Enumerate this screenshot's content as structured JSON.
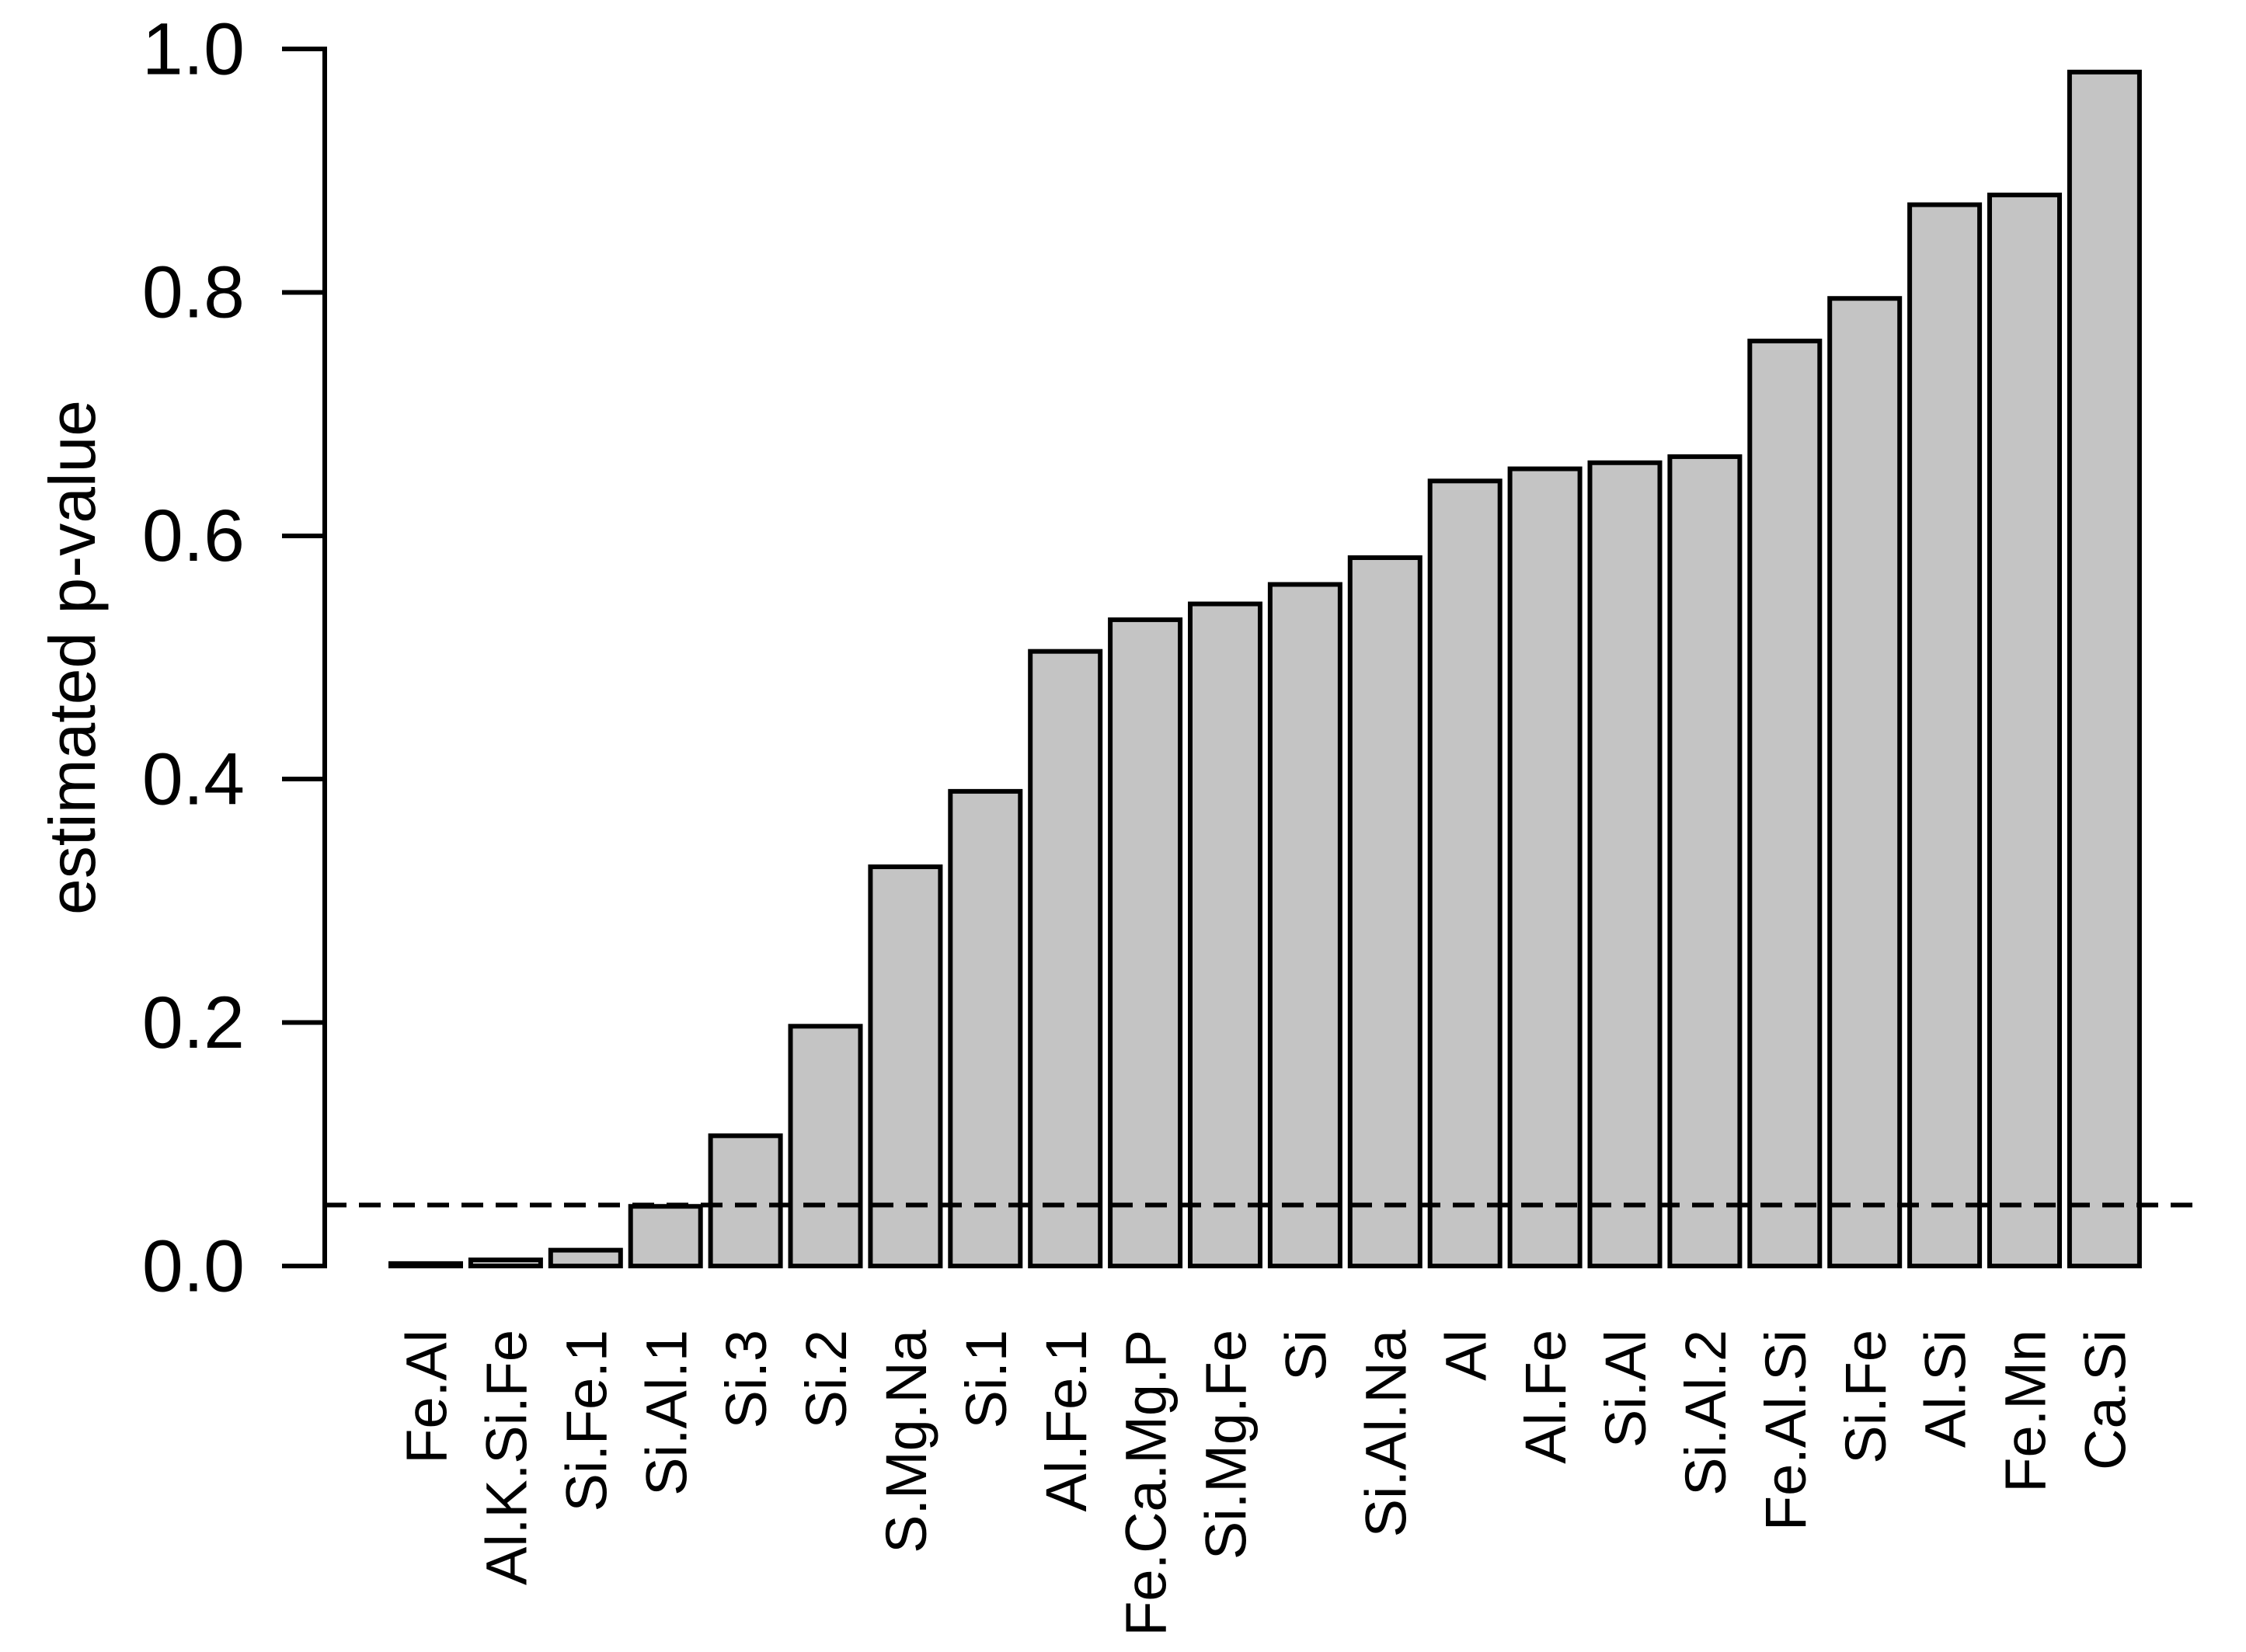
{
  "figure": {
    "background": "#ffffff",
    "text_color": "#000000"
  },
  "chart_data": {
    "type": "bar",
    "title": "",
    "xlabel": "",
    "ylabel": "estimated p-value",
    "categories": [
      "Fe.Al",
      "Al.K.Si.Fe",
      "Si.Fe.1",
      "Si.Al.1",
      "Si.3",
      "Si.2",
      "S.Mg.Na",
      "Si.1",
      "Al.Fe.1",
      "Fe.Ca.Mg.P",
      "Si.Mg.Fe",
      "Si",
      "Si.Al.Na",
      "Al",
      "Al.Fe",
      "Si.Al",
      "Si.Al.2",
      "Fe.Al.Si",
      "Si.Fe",
      "Al.Si",
      "Fe.Mn",
      "Ca.Si"
    ],
    "values": [
      0.002,
      0.005,
      0.013,
      0.049,
      0.107,
      0.197,
      0.328,
      0.39,
      0.505,
      0.531,
      0.544,
      0.56,
      0.582,
      0.645,
      0.655,
      0.66,
      0.665,
      0.76,
      0.795,
      0.872,
      0.88,
      0.981
    ],
    "ylim": [
      0,
      1
    ],
    "yticks": [
      0.0,
      0.2,
      0.4,
      0.6,
      0.8,
      1.0
    ],
    "ytick_labels": [
      "0.0",
      "0.2",
      "0.4",
      "0.6",
      "0.8",
      "1.0"
    ],
    "threshold_line": {
      "value": 0.05,
      "style": "dashed",
      "color": "#000000"
    },
    "grid": false,
    "legend": "none",
    "bar_fill": "#c4c4c4",
    "bar_stroke": "#000000",
    "axis_color": "#000000",
    "x_labels_rotation_deg": 90
  }
}
